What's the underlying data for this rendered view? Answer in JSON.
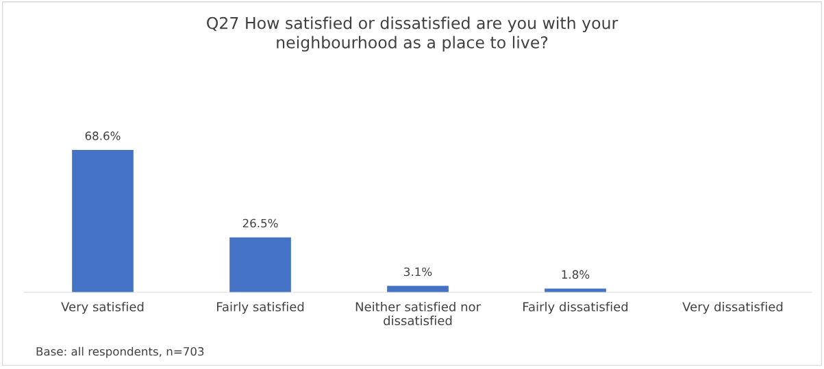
{
  "chart_data": {
    "type": "bar",
    "title": "Q27 How satisfied or dissatisfied are you with your\nneighbourhood as a place to live?",
    "categories": [
      "Very satisfied",
      "Fairly satisfied",
      "Neither satisfied nor\ndissatisfied",
      "Fairly dissatisfied",
      "Very dissatisfied"
    ],
    "values": [
      68.6,
      26.5,
      3.1,
      1.8,
      null
    ],
    "value_labels": [
      "68.6%",
      "26.5%",
      "3.1%",
      "1.8%",
      null
    ],
    "color": "#4472c4",
    "grid": false,
    "legend": false,
    "annotations": [
      "Base: all respondents, n=703"
    ]
  }
}
